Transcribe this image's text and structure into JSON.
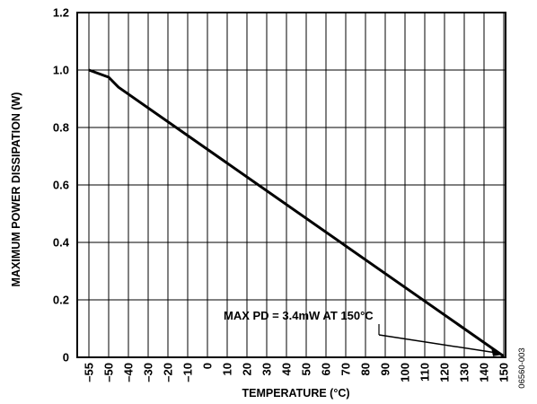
{
  "chart_data": {
    "type": "line",
    "xlabel": "TEMPERATURE (°C)",
    "ylabel": "MAXIMUM POWER DISSIPATION (W)",
    "xlim": [
      -55,
      150
    ],
    "ylim": [
      0,
      1.2
    ],
    "x_ticks": [
      -55,
      -50,
      -40,
      -30,
      -20,
      -10,
      0,
      10,
      20,
      30,
      40,
      50,
      60,
      70,
      80,
      90,
      100,
      110,
      120,
      130,
      140,
      150
    ],
    "x_tick_labels": [
      "–55",
      "–50",
      "–40",
      "–30",
      "–20",
      "–10",
      "0",
      "10",
      "20",
      "30",
      "40",
      "50",
      "60",
      "70",
      "80",
      "90",
      "100",
      "110",
      "120",
      "130",
      "140",
      "150"
    ],
    "y_ticks": [
      0,
      0.2,
      0.4,
      0.6,
      0.8,
      1.0,
      1.2
    ],
    "y_tick_labels": [
      "0",
      "0.2",
      "0.4",
      "0.6",
      "0.8",
      "1.0",
      "1.2"
    ],
    "grid": true,
    "series": [
      {
        "x": [
          -55,
          -50,
          -45,
          150
        ],
        "y": [
          1.0,
          0.975,
          0.94,
          0.0034
        ],
        "color": "#000000"
      }
    ],
    "annotation": {
      "text": "MAX PD = 3.4mW AT 150°C",
      "points_to": [
        150,
        0.0034
      ]
    },
    "figure_id": "06560-003"
  }
}
